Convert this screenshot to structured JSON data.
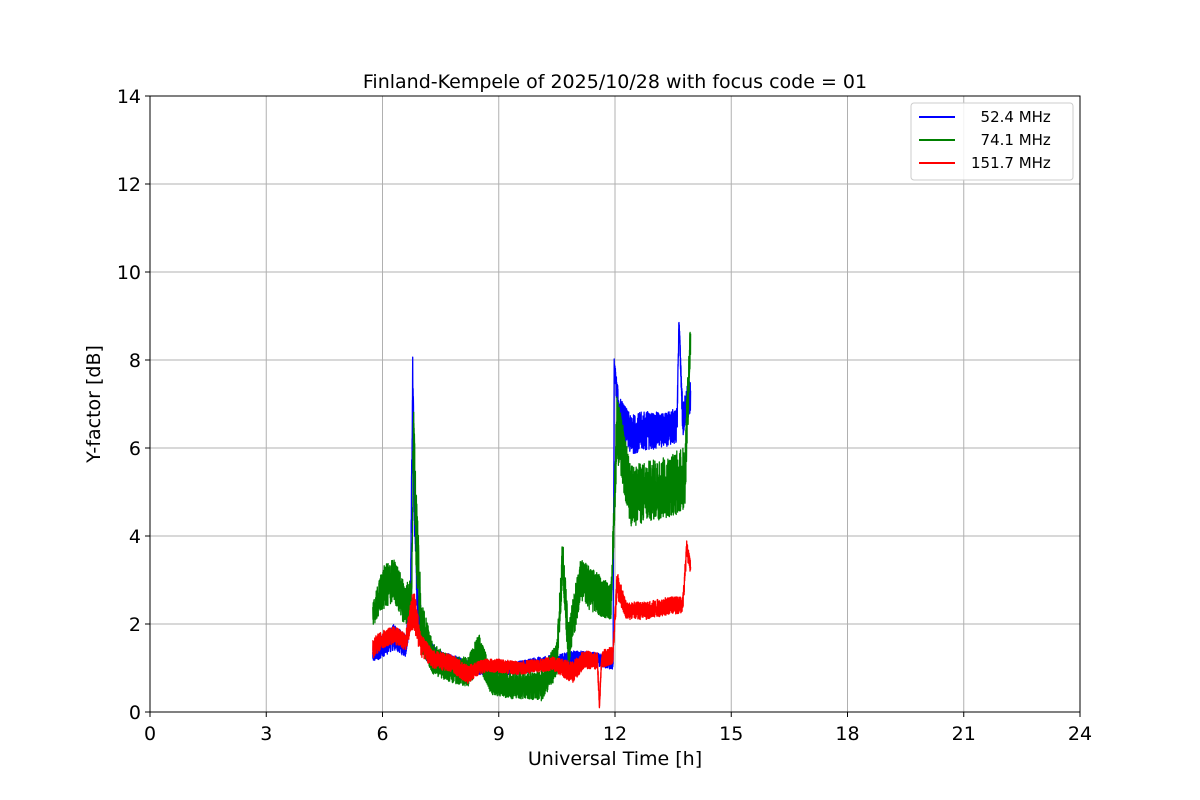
{
  "chart_data": {
    "type": "line",
    "title": "Finland-Kempele of 2025/10/28 with focus code = 01",
    "xlabel": "Universal Time [h]",
    "ylabel": "Y-factor [dB]",
    "xlim": [
      0,
      24
    ],
    "ylim": [
      0,
      14
    ],
    "xticks": [
      0,
      3,
      6,
      9,
      12,
      15,
      18,
      21,
      24
    ],
    "yticks": [
      0,
      2,
      4,
      6,
      8,
      10,
      12,
      14
    ],
    "grid": true,
    "legend_position": "top-right",
    "series": [
      {
        "name": "  52.4 MHz",
        "color": "#0000ff",
        "points": [
          [
            5.75,
            1.3,
            0.4
          ],
          [
            6.0,
            1.5,
            0.5
          ],
          [
            6.3,
            1.7,
            0.6
          ],
          [
            6.6,
            1.5,
            0.5
          ],
          [
            6.72,
            2.5,
            1.0
          ],
          [
            6.78,
            7.6,
            1.0
          ],
          [
            6.82,
            5.0,
            1.5
          ],
          [
            6.9,
            2.5,
            1.0
          ],
          [
            7.1,
            1.5,
            0.6
          ],
          [
            7.4,
            1.2,
            0.5
          ],
          [
            7.8,
            1.1,
            0.4
          ],
          [
            8.3,
            1.0,
            0.3
          ],
          [
            8.8,
            1.0,
            0.3
          ],
          [
            9.5,
            1.0,
            0.3
          ],
          [
            10.0,
            1.1,
            0.3
          ],
          [
            10.5,
            1.1,
            0.4
          ],
          [
            11.0,
            1.2,
            0.4
          ],
          [
            11.5,
            1.2,
            0.3
          ],
          [
            11.95,
            1.1,
            0.3
          ],
          [
            11.98,
            7.9,
            0.3
          ],
          [
            12.1,
            6.8,
            0.8
          ],
          [
            12.4,
            6.3,
            0.9
          ],
          [
            12.8,
            6.4,
            0.9
          ],
          [
            13.2,
            6.4,
            0.8
          ],
          [
            13.6,
            6.5,
            0.8
          ],
          [
            13.65,
            8.9,
            0.3
          ],
          [
            13.75,
            6.6,
            0.8
          ],
          [
            13.95,
            7.3,
            0.9
          ]
        ]
      },
      {
        "name": "  74.1 MHz",
        "color": "#008000",
        "points": [
          [
            5.75,
            2.2,
            0.5
          ],
          [
            6.0,
            2.8,
            1.0
          ],
          [
            6.3,
            3.0,
            1.0
          ],
          [
            6.55,
            2.5,
            1.0
          ],
          [
            6.75,
            2.5,
            1.0
          ],
          [
            6.8,
            6.6,
            1.0
          ],
          [
            6.85,
            4.5,
            2.0
          ],
          [
            7.0,
            2.0,
            1.2
          ],
          [
            7.3,
            1.2,
            0.7
          ],
          [
            7.7,
            1.0,
            0.6
          ],
          [
            8.2,
            0.9,
            0.7
          ],
          [
            8.5,
            1.4,
            0.8
          ],
          [
            8.8,
            0.7,
            0.6
          ],
          [
            9.3,
            0.6,
            0.6
          ],
          [
            9.7,
            0.6,
            0.6
          ],
          [
            10.1,
            0.6,
            0.7
          ],
          [
            10.5,
            1.2,
            0.8
          ],
          [
            10.65,
            3.5,
            1.0
          ],
          [
            10.8,
            1.5,
            1.0
          ],
          [
            11.1,
            3.0,
            1.0
          ],
          [
            11.5,
            2.7,
            1.0
          ],
          [
            11.9,
            2.5,
            0.8
          ],
          [
            12.05,
            6.5,
            1.5
          ],
          [
            12.4,
            4.9,
            1.4
          ],
          [
            12.8,
            5.0,
            1.4
          ],
          [
            13.3,
            5.1,
            1.4
          ],
          [
            13.8,
            5.3,
            1.5
          ],
          [
            13.95,
            8.6,
            1.2
          ]
        ]
      },
      {
        "name": "151.7 MHz",
        "color": "#ff0000",
        "points": [
          [
            5.75,
            1.45,
            0.5
          ],
          [
            6.0,
            1.65,
            0.4
          ],
          [
            6.3,
            1.75,
            0.4
          ],
          [
            6.6,
            1.6,
            0.4
          ],
          [
            6.8,
            2.4,
            1.0
          ],
          [
            7.0,
            1.5,
            0.5
          ],
          [
            7.3,
            1.2,
            0.4
          ],
          [
            7.8,
            1.1,
            0.4
          ],
          [
            8.2,
            0.85,
            0.4
          ],
          [
            8.6,
            1.05,
            0.3
          ],
          [
            9.0,
            1.05,
            0.3
          ],
          [
            9.5,
            1.0,
            0.3
          ],
          [
            10.0,
            1.05,
            0.3
          ],
          [
            10.4,
            1.1,
            0.3
          ],
          [
            10.9,
            0.9,
            0.5
          ],
          [
            11.2,
            1.2,
            0.4
          ],
          [
            11.55,
            1.15,
            0.4
          ],
          [
            11.6,
            0.05,
            0.2
          ],
          [
            11.65,
            1.2,
            0.4
          ],
          [
            11.95,
            1.3,
            0.4
          ],
          [
            12.05,
            2.9,
            0.6
          ],
          [
            12.3,
            2.3,
            0.4
          ],
          [
            12.8,
            2.3,
            0.4
          ],
          [
            13.3,
            2.4,
            0.4
          ],
          [
            13.75,
            2.45,
            0.4
          ],
          [
            13.85,
            3.7,
            0.4
          ],
          [
            13.95,
            3.3,
            0.3
          ]
        ]
      }
    ]
  }
}
